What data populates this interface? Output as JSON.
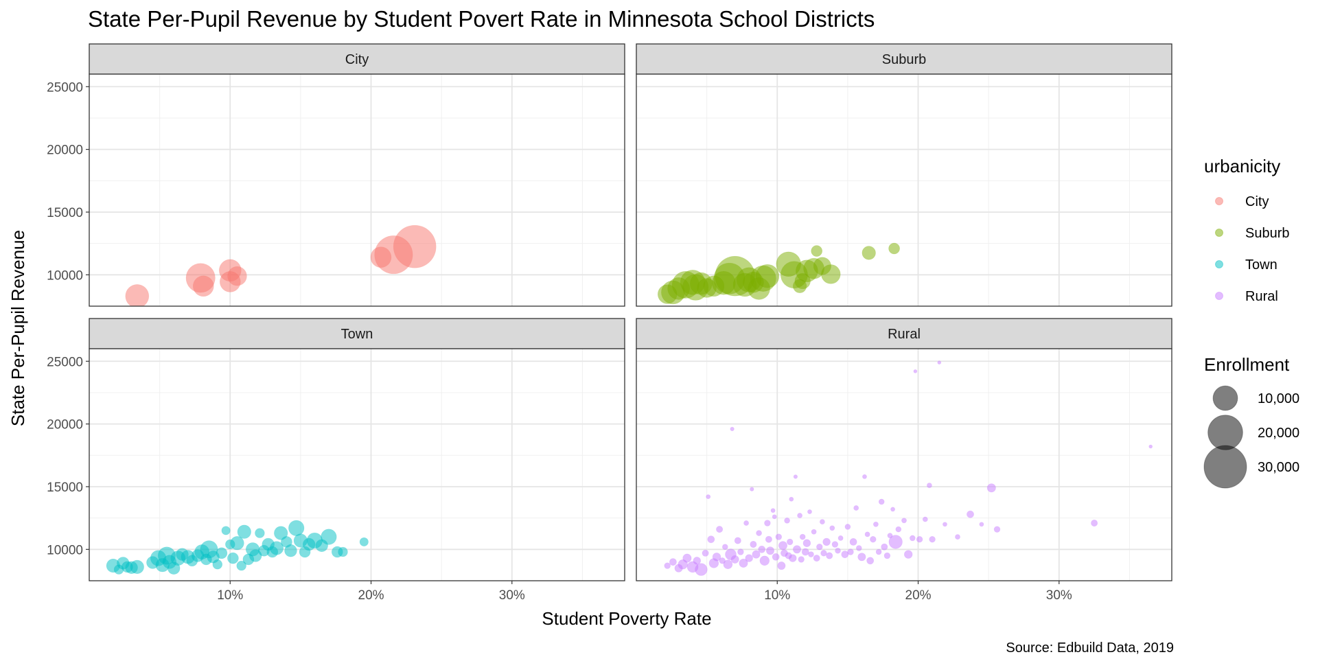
{
  "chart_data": {
    "type": "scatter",
    "title": "State Per-Pupil Revenue by Student Povert Rate in Minnesota School Districts",
    "xlabel": "Student Poverty Rate",
    "ylabel": "State Per-Pupil Revenue",
    "caption": "Source: Edbuild Data, 2019",
    "xlim": [
      0.0,
      0.38
    ],
    "ylim": [
      7500,
      26000
    ],
    "x_ticks": [
      {
        "value": 0.1,
        "label": "10%"
      },
      {
        "value": 0.2,
        "label": "20%"
      },
      {
        "value": 0.3,
        "label": "30%"
      }
    ],
    "y_ticks": [
      {
        "value": 10000,
        "label": "10000"
      },
      {
        "value": 15000,
        "label": "15000"
      },
      {
        "value": 20000,
        "label": "20000"
      },
      {
        "value": 25000,
        "label": "25000"
      }
    ],
    "grid": true,
    "facet_var": "urbanicity",
    "legend_color": {
      "title": "urbanicity",
      "position": "right",
      "items": [
        {
          "label": "City",
          "color": "#F8766D"
        },
        {
          "label": "Suburb",
          "color": "#7CAE00"
        },
        {
          "label": "Town",
          "color": "#00BFC4"
        },
        {
          "label": "Rural",
          "color": "#C77CFF"
        }
      ]
    },
    "legend_size": {
      "title": "Enrollment",
      "items": [
        {
          "label": "10,000",
          "value": 10000
        },
        {
          "label": "20,000",
          "value": 20000
        },
        {
          "label": "30,000",
          "value": 30000
        }
      ]
    },
    "panels": [
      {
        "name": "City",
        "color": "#F8766D",
        "points": [
          [
            0.034,
            8300,
            9000
          ],
          [
            0.079,
            9750,
            14000
          ],
          [
            0.081,
            9100,
            7000
          ],
          [
            0.1,
            10350,
            8000
          ],
          [
            0.1,
            9450,
            7000
          ],
          [
            0.105,
            9900,
            6000
          ],
          [
            0.207,
            11400,
            7000
          ],
          [
            0.216,
            11600,
            24000
          ],
          [
            0.231,
            12250,
            30000
          ]
        ]
      },
      {
        "name": "Suburb",
        "color": "#7CAE00",
        "points": [
          [
            0.022,
            8450,
            6000
          ],
          [
            0.026,
            8600,
            9000
          ],
          [
            0.03,
            8900,
            8000
          ],
          [
            0.035,
            9200,
            12000
          ],
          [
            0.04,
            9400,
            10000
          ],
          [
            0.042,
            9000,
            11000
          ],
          [
            0.046,
            9300,
            8000
          ],
          [
            0.05,
            8950,
            6000
          ],
          [
            0.055,
            9100,
            7000
          ],
          [
            0.062,
            9350,
            9000
          ],
          [
            0.066,
            9700,
            16000
          ],
          [
            0.07,
            9900,
            26000
          ],
          [
            0.077,
            9200,
            9000
          ],
          [
            0.08,
            9600,
            10000
          ],
          [
            0.083,
            9400,
            7000
          ],
          [
            0.087,
            8900,
            8000
          ],
          [
            0.09,
            9700,
            11000
          ],
          [
            0.093,
            9900,
            9000
          ],
          [
            0.108,
            10850,
            10000
          ],
          [
            0.112,
            10000,
            12000
          ],
          [
            0.116,
            9100,
            3000
          ],
          [
            0.118,
            9500,
            4000
          ],
          [
            0.121,
            10300,
            8000
          ],
          [
            0.126,
            10500,
            7000
          ],
          [
            0.128,
            11900,
            2000
          ],
          [
            0.132,
            10700,
            5000
          ],
          [
            0.138,
            10050,
            6000
          ],
          [
            0.165,
            11750,
            3000
          ],
          [
            0.183,
            12100,
            2000
          ]
        ]
      },
      {
        "name": "Town",
        "color": "#00BFC4",
        "points": [
          [
            0.017,
            8700,
            3000
          ],
          [
            0.021,
            8400,
            1500
          ],
          [
            0.024,
            8900,
            2500
          ],
          [
            0.027,
            8600,
            2000
          ],
          [
            0.03,
            8550,
            2500
          ],
          [
            0.034,
            8600,
            3000
          ],
          [
            0.045,
            8950,
            2500
          ],
          [
            0.049,
            9300,
            4000
          ],
          [
            0.052,
            8750,
            3000
          ],
          [
            0.055,
            9500,
            5000
          ],
          [
            0.057,
            9000,
            3000
          ],
          [
            0.06,
            8500,
            2500
          ],
          [
            0.063,
            9300,
            3500
          ],
          [
            0.066,
            9600,
            2500
          ],
          [
            0.07,
            9400,
            3000
          ],
          [
            0.073,
            9100,
            2000
          ],
          [
            0.077,
            9500,
            2500
          ],
          [
            0.08,
            9800,
            3500
          ],
          [
            0.083,
            9200,
            2000
          ],
          [
            0.085,
            10000,
            5000
          ],
          [
            0.088,
            9400,
            2500
          ],
          [
            0.091,
            8800,
            1500
          ],
          [
            0.094,
            9700,
            2000
          ],
          [
            0.097,
            11500,
            1200
          ],
          [
            0.1,
            10400,
            1500
          ],
          [
            0.102,
            9300,
            2000
          ],
          [
            0.105,
            10500,
            3000
          ],
          [
            0.108,
            8700,
            1500
          ],
          [
            0.11,
            11400,
            3000
          ],
          [
            0.113,
            9200,
            2000
          ],
          [
            0.116,
            10000,
            3000
          ],
          [
            0.118,
            9500,
            2500
          ],
          [
            0.121,
            11300,
            1500
          ],
          [
            0.124,
            9900,
            2000
          ],
          [
            0.127,
            10400,
            2500
          ],
          [
            0.13,
            9800,
            2000
          ],
          [
            0.133,
            10100,
            3000
          ],
          [
            0.136,
            11300,
            3000
          ],
          [
            0.14,
            10600,
            2000
          ],
          [
            0.143,
            9900,
            2500
          ],
          [
            0.147,
            11700,
            4000
          ],
          [
            0.15,
            10700,
            3000
          ],
          [
            0.153,
            9800,
            2000
          ],
          [
            0.156,
            10400,
            2500
          ],
          [
            0.16,
            10700,
            4000
          ],
          [
            0.165,
            10300,
            2500
          ],
          [
            0.17,
            11000,
            4000
          ],
          [
            0.176,
            9800,
            2000
          ],
          [
            0.18,
            9800,
            1500
          ],
          [
            0.195,
            10600,
            1200
          ]
        ]
      },
      {
        "name": "Rural",
        "color": "#C77CFF",
        "points": [
          [
            0.022,
            8700,
            600
          ],
          [
            0.026,
            9000,
            800
          ],
          [
            0.03,
            8500,
            1000
          ],
          [
            0.033,
            8800,
            1500
          ],
          [
            0.036,
            9300,
            1200
          ],
          [
            0.04,
            8600,
            2000
          ],
          [
            0.043,
            9100,
            900
          ],
          [
            0.046,
            8400,
            2500
          ],
          [
            0.049,
            9700,
            700
          ],
          [
            0.051,
            14200,
            300
          ],
          [
            0.053,
            10800,
            800
          ],
          [
            0.055,
            8900,
            1500
          ],
          [
            0.057,
            9400,
            1100
          ],
          [
            0.059,
            11600,
            700
          ],
          [
            0.061,
            9100,
            600
          ],
          [
            0.063,
            10200,
            500
          ],
          [
            0.065,
            8800,
            1300
          ],
          [
            0.067,
            9600,
            2000
          ],
          [
            0.068,
            19600,
            250
          ],
          [
            0.07,
            9200,
            1000
          ],
          [
            0.072,
            10700,
            700
          ],
          [
            0.074,
            9800,
            600
          ],
          [
            0.076,
            8900,
            1200
          ],
          [
            0.078,
            12100,
            400
          ],
          [
            0.08,
            9300,
            900
          ],
          [
            0.082,
            14800,
            250
          ],
          [
            0.083,
            10400,
            700
          ],
          [
            0.085,
            9600,
            1000
          ],
          [
            0.087,
            11300,
            500
          ],
          [
            0.089,
            10000,
            800
          ],
          [
            0.091,
            9100,
            1500
          ],
          [
            0.093,
            12100,
            600
          ],
          [
            0.094,
            10800,
            700
          ],
          [
            0.095,
            9900,
            1000
          ],
          [
            0.097,
            13100,
            300
          ],
          [
            0.098,
            12600,
            300
          ],
          [
            0.099,
            9400,
            800
          ],
          [
            0.101,
            11000,
            600
          ],
          [
            0.103,
            8700,
            1000
          ],
          [
            0.104,
            10300,
            1200
          ],
          [
            0.105,
            9700,
            800
          ],
          [
            0.107,
            12300,
            500
          ],
          [
            0.108,
            9500,
            700
          ],
          [
            0.109,
            10600,
            600
          ],
          [
            0.11,
            14000,
            300
          ],
          [
            0.111,
            9300,
            900
          ],
          [
            0.113,
            15800,
            250
          ],
          [
            0.114,
            10000,
            1000
          ],
          [
            0.116,
            12700,
            400
          ],
          [
            0.117,
            9200,
            600
          ],
          [
            0.118,
            11000,
            500
          ],
          [
            0.12,
            9800,
            800
          ],
          [
            0.121,
            10500,
            900
          ],
          [
            0.123,
            13000,
            300
          ],
          [
            0.124,
            9600,
            500
          ],
          [
            0.126,
            11400,
            400
          ],
          [
            0.128,
            9300,
            700
          ],
          [
            0.13,
            10200,
            600
          ],
          [
            0.132,
            12200,
            400
          ],
          [
            0.133,
            9700,
            600
          ],
          [
            0.135,
            10600,
            900
          ],
          [
            0.137,
            9500,
            700
          ],
          [
            0.139,
            11700,
            400
          ],
          [
            0.141,
            10400,
            600
          ],
          [
            0.143,
            9900,
            500
          ],
          [
            0.145,
            10900,
            400
          ],
          [
            0.148,
            9600,
            800
          ],
          [
            0.15,
            11800,
            500
          ],
          [
            0.152,
            9800,
            600
          ],
          [
            0.154,
            10600,
            800
          ],
          [
            0.156,
            13300,
            400
          ],
          [
            0.158,
            10100,
            500
          ],
          [
            0.16,
            9400,
            1000
          ],
          [
            0.162,
            15800,
            300
          ],
          [
            0.164,
            11200,
            400
          ],
          [
            0.166,
            9100,
            800
          ],
          [
            0.168,
            10800,
            600
          ],
          [
            0.17,
            12000,
            400
          ],
          [
            0.172,
            9800,
            500
          ],
          [
            0.174,
            13800,
            500
          ],
          [
            0.176,
            10200,
            700
          ],
          [
            0.178,
            9500,
            600
          ],
          [
            0.18,
            11100,
            400
          ],
          [
            0.182,
            13200,
            300
          ],
          [
            0.184,
            10600,
            3000
          ],
          [
            0.186,
            11600,
            500
          ],
          [
            0.19,
            12300,
            400
          ],
          [
            0.193,
            9600,
            1100
          ],
          [
            0.196,
            10900,
            500
          ],
          [
            0.198,
            24200,
            200
          ],
          [
            0.201,
            10800,
            600
          ],
          [
            0.205,
            12400,
            400
          ],
          [
            0.208,
            15100,
            400
          ],
          [
            0.21,
            10800,
            600
          ],
          [
            0.215,
            24900,
            200
          ],
          [
            0.219,
            12000,
            300
          ],
          [
            0.228,
            11000,
            400
          ],
          [
            0.237,
            12800,
            800
          ],
          [
            0.245,
            12000,
            300
          ],
          [
            0.252,
            14900,
            1200
          ],
          [
            0.256,
            11600,
            600
          ],
          [
            0.325,
            12100,
            700
          ],
          [
            0.365,
            18200,
            200
          ]
        ]
      }
    ]
  }
}
